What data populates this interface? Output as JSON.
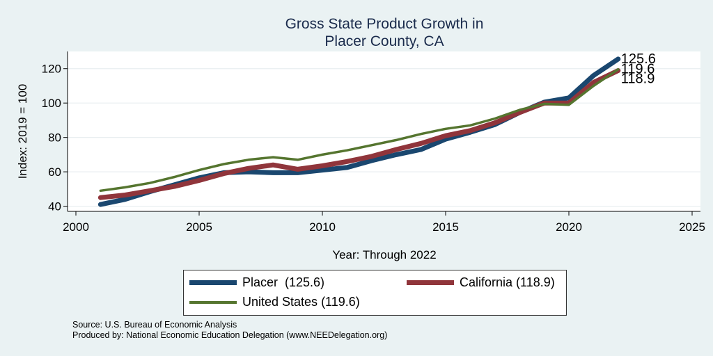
{
  "chart_data": {
    "type": "line",
    "title": [
      "Gross State Product Growth in",
      "Placer County, CA"
    ],
    "xlabel": "Year: Through 2022",
    "ylabel": "Index: 2019 = 100",
    "xlim": [
      2000,
      2025
    ],
    "ylim": [
      37,
      130
    ],
    "xticks": [
      2000,
      2005,
      2010,
      2015,
      2020,
      2025
    ],
    "yticks": [
      40,
      60,
      80,
      100,
      120
    ],
    "grid": true,
    "legend_position": "bottom",
    "x": [
      2001,
      2002,
      2003,
      2004,
      2005,
      2006,
      2007,
      2008,
      2009,
      2010,
      2011,
      2012,
      2013,
      2014,
      2015,
      2016,
      2017,
      2018,
      2019,
      2020,
      2021,
      2022
    ],
    "series": [
      {
        "name": "Placer",
        "legend": "Placer  (125.6)",
        "end_label": "125.6",
        "color": "#1a476f",
        "stroke": 7,
        "values": [
          41,
          44,
          48.5,
          52.5,
          56.5,
          59.5,
          60,
          59.5,
          59.5,
          61,
          62.5,
          66.5,
          70,
          73,
          79,
          83,
          87.5,
          94.5,
          100.5,
          103,
          116,
          125.6
        ]
      },
      {
        "name": "California",
        "legend": "California (118.9)",
        "end_label": "118.9",
        "color": "#90353b",
        "stroke": 7,
        "values": [
          45,
          46.5,
          49,
          51.5,
          55,
          59,
          62,
          64,
          61.5,
          63.5,
          66,
          69,
          73,
          76.5,
          81,
          84,
          88.5,
          94.5,
          100,
          100,
          112,
          118.9
        ]
      },
      {
        "name": "United States",
        "legend": "United States (119.6)",
        "end_label": "119.6",
        "color": "#55752f",
        "stroke": 3.5,
        "values": [
          49,
          51,
          53.5,
          57,
          61,
          64.5,
          67,
          68.5,
          67,
          70,
          72.5,
          75.5,
          78.5,
          82,
          85,
          87,
          91,
          96,
          99.5,
          99,
          110,
          119.6
        ]
      }
    ]
  },
  "source": "Source: U.S. Bureau of Economic Analysis",
  "produced_by": "Produced by: National Economic Education Delegation (www.NEEDelegation.org)"
}
